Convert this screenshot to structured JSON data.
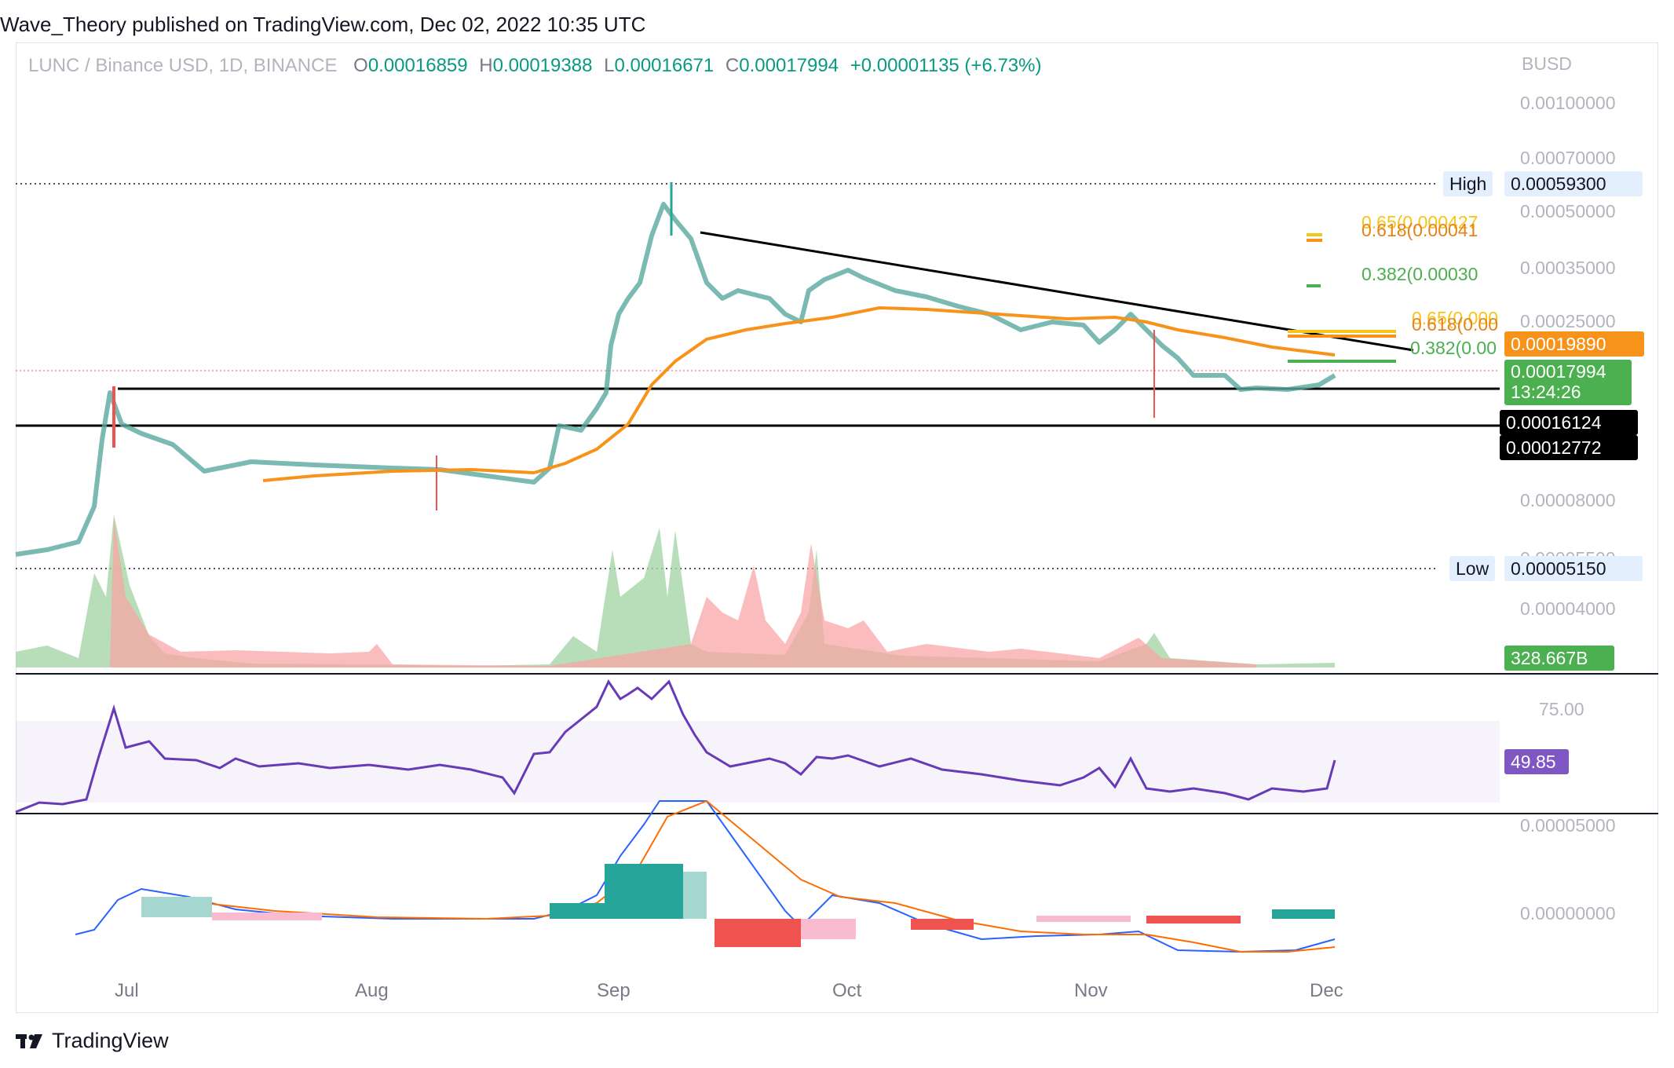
{
  "header": {
    "caption": "Wave_Theory published on TradingView.com, Dec 02, 2022 10:35 UTC"
  },
  "symbol": {
    "pair": "LUNC / Binance USD, 1D, BINANCE",
    "o_label": "O",
    "o": "0.00016859",
    "h_label": "H",
    "h": "0.00019388",
    "l_label": "L",
    "l": "0.00016671",
    "c_label": "C",
    "c": "0.00017994",
    "change": "+0.00001135 (+6.73%)"
  },
  "price_axis": {
    "currency": "BUSD",
    "ticks": [
      "0.00100000",
      "0.00070000",
      "0.00050000",
      "0.00035000",
      "0.00025000",
      "0.00008000",
      "0.00005500",
      "0.00004000"
    ],
    "high_label": "High",
    "high_value": "0.00059300",
    "low_label": "Low",
    "low_value": "0.00005150",
    "ma_value": "0.00019890",
    "last_price": "0.00017994",
    "countdown": "13:24:26",
    "support_1": "0.00016124",
    "support_2": "0.00012772",
    "volume": "328.667B"
  },
  "fib": {
    "upper_065": "0.65(0.000427",
    "upper_0618": "0.618(0.00041",
    "upper_0382": "0.382(0.00030",
    "lower_065": "0.65(0.000",
    "lower_0618": "0.618(0.00",
    "lower_0382": "0.382(0.00"
  },
  "rsi": {
    "level": "75.00",
    "value": "49.85"
  },
  "macd": {
    "tick_top": "0.00005000",
    "tick_zero": "0.00000000"
  },
  "time_axis": {
    "labels": [
      "Jul",
      "Aug",
      "Sep",
      "Oct",
      "Nov",
      "Dec"
    ]
  },
  "footer": {
    "brand": "TradingView"
  },
  "colors": {
    "up": "#26a69a",
    "down": "#ef5350",
    "ma": "#f7931a",
    "rsi": "#7e57c2",
    "macd": "#2962ff",
    "signal": "#ff6d00"
  }
}
